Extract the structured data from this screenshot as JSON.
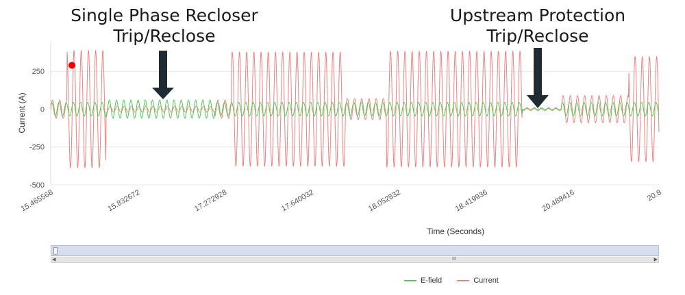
{
  "annotations": {
    "left": {
      "line1": "Single Phase Recloser",
      "line2": "Trip/Reclose"
    },
    "right": {
      "line1": "Upstream Protection",
      "line2": "Trip/Reclose"
    }
  },
  "chart_data": {
    "type": "line",
    "title": "",
    "xlabel": "Time (Seconds)",
    "ylabel": "Current (A)",
    "ylim": [
      -500,
      450
    ],
    "yticks": [
      250,
      0,
      -250,
      -500
    ],
    "xtick_labels": [
      "15.465568",
      "15.832672",
      "17.272928",
      "17.640032",
      "18.052832",
      "18.419936",
      "20.488416",
      "20.8"
    ],
    "grid": "horizontal",
    "legend_position": "bottom",
    "segment_boundaries": [
      "15.465568",
      "15.832672",
      "17.272928",
      "17.640032",
      "18.052832",
      "18.419936",
      "20.488416",
      "20.8"
    ],
    "series": [
      {
        "name": "E-field",
        "color": "#4cd04c",
        "cycles_per_segment": 40,
        "segments": [
          {
            "from": 0.0,
            "to": 0.091,
            "amp": 45
          },
          {
            "from": 0.091,
            "to": 0.27,
            "amp": 60
          },
          {
            "from": 0.27,
            "to": 0.775,
            "amp": 45
          },
          {
            "from": 0.775,
            "to": 0.84,
            "amp": 5
          },
          {
            "from": 0.84,
            "to": 1.0,
            "amp": 45
          }
        ]
      },
      {
        "name": "Current",
        "color": "#f08080",
        "segments": [
          {
            "from": 0.0,
            "to": 0.027,
            "amp": 60
          },
          {
            "from": 0.027,
            "to": 0.091,
            "amp": 390
          },
          {
            "from": 0.091,
            "to": 0.27,
            "amp": 20
          },
          {
            "from": 0.27,
            "to": 0.297,
            "amp": 60
          },
          {
            "from": 0.297,
            "to": 0.485,
            "amp": 380
          },
          {
            "from": 0.485,
            "to": 0.552,
            "amp": 70
          },
          {
            "from": 0.552,
            "to": 0.775,
            "amp": 385
          },
          {
            "from": 0.775,
            "to": 0.84,
            "amp": 10
          },
          {
            "from": 0.84,
            "to": 0.95,
            "amp": 90
          },
          {
            "from": 0.95,
            "to": 1.0,
            "amp": 350
          }
        ]
      }
    ],
    "marker": {
      "x_fraction": 0.027,
      "y": 290,
      "color": "#ee0000"
    }
  },
  "legend": [
    {
      "label": "E-field",
      "color": "#4cd04c"
    },
    {
      "label": "Current",
      "color": "#f08080"
    }
  ],
  "scroller": {
    "grip": "III",
    "left_arrow": "◀",
    "right_arrow": "▶"
  }
}
